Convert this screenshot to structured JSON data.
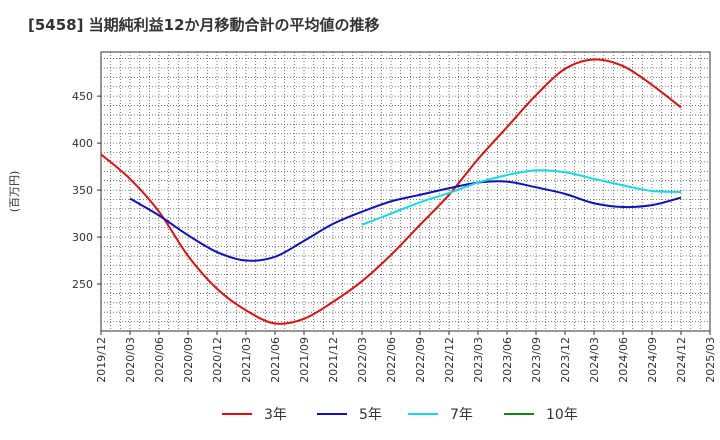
{
  "chart_data": {
    "type": "line",
    "title": "[5458]  当期純利益12か月移動合計の平均値の推移",
    "ylabel": "(百万円)",
    "xlabel": "",
    "grid": true,
    "legend_position": "bottom",
    "xlim": [
      "2019-12",
      "2025-03"
    ],
    "ylim": [
      200,
      497
    ],
    "x_ticks": [
      "2019/12",
      "2020/03",
      "2020/06",
      "2020/09",
      "2020/12",
      "2021/03",
      "2021/06",
      "2021/09",
      "2021/12",
      "2022/03",
      "2022/06",
      "2022/09",
      "2022/12",
      "2023/03",
      "2023/06",
      "2023/09",
      "2023/12",
      "2024/03",
      "2024/06",
      "2024/09",
      "2024/12",
      "2025/03"
    ],
    "y_ticks": [
      250,
      300,
      350,
      400,
      450
    ],
    "series": [
      {
        "name": "3年",
        "color": "#dd1111",
        "x": [
          "2019-12",
          "2020-03",
          "2020-06",
          "2020-09",
          "2020-12",
          "2021-03",
          "2021-06",
          "2021-09",
          "2021-12",
          "2022-03",
          "2022-06",
          "2022-09",
          "2022-12",
          "2023-03",
          "2023-06",
          "2023-09",
          "2023-12",
          "2024-03",
          "2024-06",
          "2024-09",
          "2024-12"
        ],
        "y": [
          388,
          362,
          327,
          280,
          245,
          222,
          208,
          213,
          231,
          253,
          281,
          313,
          345,
          383,
          417,
          451,
          479,
          489,
          482,
          462,
          438
        ]
      },
      {
        "name": "5年",
        "color": "#1111bb",
        "x": [
          "2020-03",
          "2020-06",
          "2020-09",
          "2020-12",
          "2021-03",
          "2021-06",
          "2021-09",
          "2021-12",
          "2022-03",
          "2022-06",
          "2022-09",
          "2022-12",
          "2023-03",
          "2023-06",
          "2023-09",
          "2023-12",
          "2024-03",
          "2024-06",
          "2024-09",
          "2024-12"
        ],
        "y": [
          341,
          323,
          302,
          284,
          275,
          279,
          296,
          314,
          327,
          338,
          345,
          352,
          358,
          359,
          353,
          346,
          336,
          332,
          334,
          342
        ]
      },
      {
        "name": "7年",
        "color": "#11dddd",
        "x": [
          "2022-03",
          "2022-06",
          "2022-09",
          "2022-12",
          "2023-03",
          "2023-06",
          "2023-09",
          "2023-12",
          "2024-03",
          "2024-06",
          "2024-09",
          "2024-12"
        ],
        "y": [
          313,
          325,
          337,
          347,
          358,
          366,
          371,
          369,
          362,
          355,
          349,
          348
        ]
      },
      {
        "name": "10年",
        "color": "#118811",
        "x": [],
        "y": []
      }
    ]
  }
}
